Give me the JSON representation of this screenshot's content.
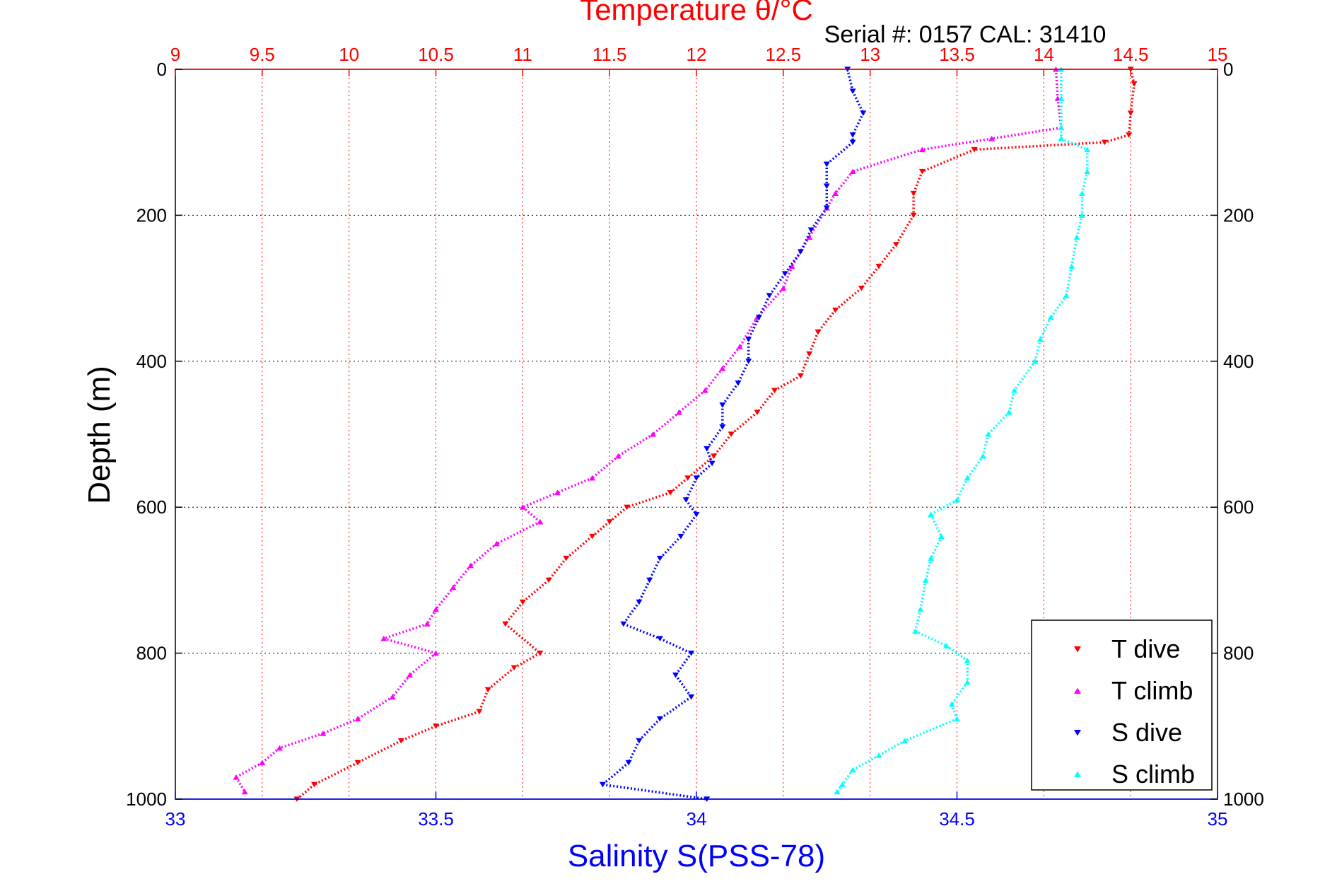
{
  "chart_data": {
    "type": "scatter",
    "title": "Temperature θ/°C",
    "subtitle": "Serial #: 0157  CAL: 31410",
    "xlabel_bottom": "Salinity S(PSS-78)",
    "ylabel": "Depth (m)",
    "x_top": {
      "min": 9,
      "max": 15,
      "ticks": [
        "9",
        "9.5",
        "10",
        "10.5",
        "11",
        "11.5",
        "12",
        "12.5",
        "13",
        "13.5",
        "14",
        "14.5",
        "15"
      ],
      "color": "#ff0000"
    },
    "x_bottom": {
      "min": 33,
      "max": 35,
      "ticks": [
        "33",
        "33.5",
        "34",
        "34.5",
        "35"
      ],
      "color": "#0000ff"
    },
    "y": {
      "min": 0,
      "max": 1000,
      "reversed": true,
      "ticks": [
        "0",
        "200",
        "400",
        "600",
        "800",
        "1000"
      ]
    },
    "grid": true,
    "legend_position": "bottom-right",
    "series": [
      {
        "name": "T dive",
        "axis": "top",
        "color": "#ff0000",
        "marker": "triangle-down",
        "points": [
          [
            14.5,
            0
          ],
          [
            14.52,
            20
          ],
          [
            14.5,
            60
          ],
          [
            14.49,
            90
          ],
          [
            14.35,
            100
          ],
          [
            13.6,
            110
          ],
          [
            13.3,
            140
          ],
          [
            13.25,
            170
          ],
          [
            13.25,
            200
          ],
          [
            13.15,
            240
          ],
          [
            13.05,
            270
          ],
          [
            12.95,
            300
          ],
          [
            12.8,
            330
          ],
          [
            12.7,
            360
          ],
          [
            12.65,
            390
          ],
          [
            12.6,
            420
          ],
          [
            12.45,
            440
          ],
          [
            12.35,
            470
          ],
          [
            12.2,
            500
          ],
          [
            12.1,
            530
          ],
          [
            11.95,
            560
          ],
          [
            11.85,
            580
          ],
          [
            11.6,
            600
          ],
          [
            11.5,
            620
          ],
          [
            11.4,
            640
          ],
          [
            11.25,
            670
          ],
          [
            11.15,
            700
          ],
          [
            11.0,
            730
          ],
          [
            10.9,
            760
          ],
          [
            11.1,
            800
          ],
          [
            10.95,
            820
          ],
          [
            10.8,
            850
          ],
          [
            10.75,
            880
          ],
          [
            10.5,
            900
          ],
          [
            10.3,
            920
          ],
          [
            10.05,
            950
          ],
          [
            9.8,
            980
          ],
          [
            9.7,
            1000
          ]
        ]
      },
      {
        "name": "T climb",
        "axis": "top",
        "color": "#ff00ff",
        "marker": "triangle-up",
        "points": [
          [
            14.07,
            0
          ],
          [
            14.08,
            40
          ],
          [
            14.1,
            80
          ],
          [
            13.7,
            95
          ],
          [
            13.3,
            110
          ],
          [
            12.9,
            140
          ],
          [
            12.8,
            170
          ],
          [
            12.75,
            190
          ],
          [
            12.65,
            230
          ],
          [
            12.55,
            270
          ],
          [
            12.5,
            300
          ],
          [
            12.35,
            340
          ],
          [
            12.25,
            380
          ],
          [
            12.15,
            410
          ],
          [
            12.05,
            440
          ],
          [
            11.9,
            470
          ],
          [
            11.75,
            500
          ],
          [
            11.55,
            530
          ],
          [
            11.4,
            560
          ],
          [
            11.2,
            580
          ],
          [
            11.0,
            600
          ],
          [
            11.1,
            620
          ],
          [
            10.85,
            650
          ],
          [
            10.7,
            680
          ],
          [
            10.6,
            710
          ],
          [
            10.5,
            740
          ],
          [
            10.45,
            760
          ],
          [
            10.2,
            780
          ],
          [
            10.5,
            800
          ],
          [
            10.35,
            830
          ],
          [
            10.25,
            860
          ],
          [
            10.05,
            890
          ],
          [
            9.85,
            910
          ],
          [
            9.6,
            930
          ],
          [
            9.5,
            950
          ],
          [
            9.35,
            970
          ],
          [
            9.4,
            990
          ]
        ]
      },
      {
        "name": "S dive",
        "axis": "bottom",
        "color": "#0000ff",
        "marker": "triangle-down",
        "points": [
          [
            34.29,
            0
          ],
          [
            34.3,
            30
          ],
          [
            34.32,
            60
          ],
          [
            34.3,
            90
          ],
          [
            34.3,
            100
          ],
          [
            34.25,
            130
          ],
          [
            34.25,
            160
          ],
          [
            34.25,
            190
          ],
          [
            34.22,
            220
          ],
          [
            34.2,
            250
          ],
          [
            34.17,
            280
          ],
          [
            34.14,
            310
          ],
          [
            34.12,
            340
          ],
          [
            34.1,
            370
          ],
          [
            34.1,
            400
          ],
          [
            34.08,
            430
          ],
          [
            34.05,
            460
          ],
          [
            34.05,
            490
          ],
          [
            34.02,
            520
          ],
          [
            34.03,
            540
          ],
          [
            34.0,
            560
          ],
          [
            33.98,
            590
          ],
          [
            34.0,
            610
          ],
          [
            33.97,
            640
          ],
          [
            33.93,
            670
          ],
          [
            33.91,
            700
          ],
          [
            33.89,
            730
          ],
          [
            33.86,
            760
          ],
          [
            33.93,
            780
          ],
          [
            33.99,
            800
          ],
          [
            33.96,
            830
          ],
          [
            33.99,
            860
          ],
          [
            33.93,
            890
          ],
          [
            33.89,
            920
          ],
          [
            33.87,
            950
          ],
          [
            33.82,
            980
          ],
          [
            34.02,
            1000
          ]
        ]
      },
      {
        "name": "S climb",
        "axis": "bottom",
        "color": "#00ffff",
        "marker": "triangle-up",
        "points": [
          [
            34.7,
            0
          ],
          [
            34.7,
            40
          ],
          [
            34.7,
            80
          ],
          [
            34.7,
            95
          ],
          [
            34.75,
            110
          ],
          [
            34.75,
            140
          ],
          [
            34.74,
            170
          ],
          [
            34.74,
            200
          ],
          [
            34.73,
            230
          ],
          [
            34.72,
            270
          ],
          [
            34.71,
            310
          ],
          [
            34.68,
            340
          ],
          [
            34.66,
            370
          ],
          [
            34.65,
            400
          ],
          [
            34.61,
            440
          ],
          [
            34.6,
            470
          ],
          [
            34.56,
            500
          ],
          [
            34.55,
            530
          ],
          [
            34.52,
            560
          ],
          [
            34.5,
            590
          ],
          [
            34.45,
            610
          ],
          [
            34.47,
            640
          ],
          [
            34.45,
            670
          ],
          [
            34.44,
            700
          ],
          [
            34.43,
            740
          ],
          [
            34.42,
            770
          ],
          [
            34.48,
            790
          ],
          [
            34.52,
            810
          ],
          [
            34.52,
            840
          ],
          [
            34.49,
            870
          ],
          [
            34.5,
            890
          ],
          [
            34.4,
            920
          ],
          [
            34.35,
            940
          ],
          [
            34.3,
            960
          ],
          [
            34.28,
            980
          ],
          [
            34.27,
            990
          ]
        ]
      }
    ]
  }
}
